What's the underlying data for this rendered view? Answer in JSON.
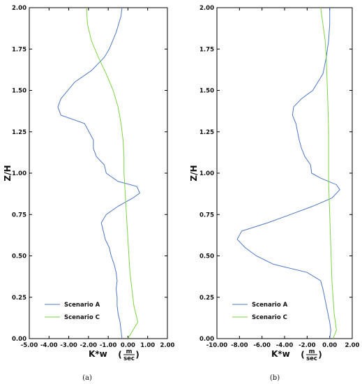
{
  "chart_data": [
    {
      "id": "a",
      "type": "line",
      "caption": "(a)",
      "xlabel": "K*w",
      "xunit_num": "m",
      "xunit_den": "sec",
      "ylabel": "Z/H",
      "xlim": [
        -5.0,
        2.0
      ],
      "ylim": [
        0.0,
        2.0
      ],
      "xticks": [
        -5.0,
        -4.0,
        -3.0,
        -2.0,
        -1.0,
        0.0,
        1.0,
        2.0
      ],
      "xtick_labels": [
        "-5.00",
        "-4.00",
        "-3.00",
        "-2.00",
        "-1.00",
        "0.00",
        "1.00",
        "2.00"
      ],
      "yticks": [
        0.0,
        0.25,
        0.5,
        0.75,
        1.0,
        1.25,
        1.5,
        1.75,
        2.0
      ],
      "ytick_labels": [
        "0.00",
        "0.25",
        "0.50",
        "0.75",
        "1.00",
        "1.25",
        "1.50",
        "1.75",
        "2.00"
      ],
      "legend_position": "bottom-left",
      "grid": false,
      "series": [
        {
          "name": "Scenario A",
          "color": "#4f78c4",
          "points": [
            [
              -0.3,
              0.0
            ],
            [
              -0.35,
              0.05
            ],
            [
              -0.4,
              0.1
            ],
            [
              -0.5,
              0.15
            ],
            [
              -0.55,
              0.2
            ],
            [
              -0.55,
              0.25
            ],
            [
              -0.6,
              0.3
            ],
            [
              -0.55,
              0.35
            ],
            [
              -0.6,
              0.4
            ],
            [
              -0.7,
              0.45
            ],
            [
              -0.85,
              0.5
            ],
            [
              -0.95,
              0.55
            ],
            [
              -1.15,
              0.6
            ],
            [
              -1.25,
              0.65
            ],
            [
              -1.35,
              0.7
            ],
            [
              -1.1,
              0.75
            ],
            [
              -0.5,
              0.8
            ],
            [
              0.25,
              0.85
            ],
            [
              0.6,
              0.88
            ],
            [
              0.45,
              0.92
            ],
            [
              -0.5,
              0.95
            ],
            [
              -1.1,
              1.0
            ],
            [
              -1.2,
              1.05
            ],
            [
              -1.6,
              1.1
            ],
            [
              -1.75,
              1.15
            ],
            [
              -1.75,
              1.2
            ],
            [
              -2.2,
              1.3
            ],
            [
              -3.4,
              1.35
            ],
            [
              -3.55,
              1.4
            ],
            [
              -3.4,
              1.45
            ],
            [
              -2.7,
              1.55
            ],
            [
              -1.85,
              1.62
            ],
            [
              -1.2,
              1.7
            ],
            [
              -0.95,
              1.75
            ],
            [
              -0.6,
              1.85
            ],
            [
              -0.35,
              1.95
            ],
            [
              -0.3,
              2.0
            ]
          ]
        },
        {
          "name": "Scenario C",
          "color": "#7ed346",
          "points": [
            [
              0.0,
              0.0
            ],
            [
              0.25,
              0.05
            ],
            [
              0.5,
              0.1
            ],
            [
              0.3,
              0.2
            ],
            [
              0.2,
              0.3
            ],
            [
              0.1,
              0.4
            ],
            [
              0.05,
              0.5
            ],
            [
              0.0,
              0.6
            ],
            [
              -0.05,
              0.7
            ],
            [
              -0.1,
              0.8
            ],
            [
              -0.15,
              0.9
            ],
            [
              -0.2,
              1.0
            ],
            [
              -0.2,
              1.1
            ],
            [
              -0.25,
              1.2
            ],
            [
              -0.35,
              1.3
            ],
            [
              -0.5,
              1.4
            ],
            [
              -0.75,
              1.5
            ],
            [
              -1.1,
              1.6
            ],
            [
              -1.5,
              1.7
            ],
            [
              -1.85,
              1.8
            ],
            [
              -2.05,
              1.9
            ],
            [
              -2.1,
              2.0
            ]
          ]
        }
      ]
    },
    {
      "id": "b",
      "type": "line",
      "caption": "(b)",
      "xlabel": "K*w",
      "xunit_num": "m",
      "xunit_den": "sec",
      "ylabel": "Z/H",
      "xlim": [
        -10.0,
        2.0
      ],
      "ylim": [
        0.0,
        2.0
      ],
      "xticks": [
        -10.0,
        -8.0,
        -6.0,
        -4.0,
        -2.0,
        0.0,
        2.0
      ],
      "xtick_labels": [
        "-10.00",
        "-8.00",
        "-6.00",
        "-4.00",
        "-2.00",
        "0.00",
        "2.00"
      ],
      "yticks": [
        0.0,
        0.25,
        0.5,
        0.75,
        1.0,
        1.25,
        1.5,
        1.75,
        2.0
      ],
      "ytick_labels": [
        "0.00",
        "0.25",
        "0.50",
        "0.75",
        "1.00",
        "1.25",
        "1.50",
        "1.75",
        "2.00"
      ],
      "legend_position": "bottom-left",
      "grid": false,
      "series": [
        {
          "name": "Scenario A",
          "color": "#4f78c4",
          "points": [
            [
              0.0,
              0.0
            ],
            [
              0.1,
              0.05
            ],
            [
              0.0,
              0.1
            ],
            [
              -0.3,
              0.2
            ],
            [
              -0.6,
              0.3
            ],
            [
              -0.8,
              0.35
            ],
            [
              -2.0,
              0.4
            ],
            [
              -5.0,
              0.45
            ],
            [
              -6.5,
              0.5
            ],
            [
              -7.5,
              0.55
            ],
            [
              -8.2,
              0.6
            ],
            [
              -7.8,
              0.65
            ],
            [
              -5.5,
              0.7
            ],
            [
              -3.5,
              0.75
            ],
            [
              -1.5,
              0.8
            ],
            [
              0.2,
              0.85
            ],
            [
              0.9,
              0.9
            ],
            [
              0.6,
              0.93
            ],
            [
              -0.8,
              0.97
            ],
            [
              -1.6,
              1.0
            ],
            [
              -1.7,
              1.05
            ],
            [
              -2.2,
              1.1
            ],
            [
              -2.5,
              1.15
            ],
            [
              -2.7,
              1.2
            ],
            [
              -3.0,
              1.3
            ],
            [
              -3.3,
              1.35
            ],
            [
              -3.2,
              1.4
            ],
            [
              -2.5,
              1.45
            ],
            [
              -1.5,
              1.5
            ],
            [
              -0.6,
              1.6
            ],
            [
              -0.3,
              1.7
            ],
            [
              -0.1,
              1.8
            ],
            [
              0.0,
              1.9
            ],
            [
              0.0,
              2.0
            ]
          ]
        },
        {
          "name": "Scenario C",
          "color": "#7ed346",
          "points": [
            [
              0.3,
              0.0
            ],
            [
              0.6,
              0.05
            ],
            [
              0.4,
              0.15
            ],
            [
              0.3,
              0.25
            ],
            [
              0.2,
              0.35
            ],
            [
              0.15,
              0.45
            ],
            [
              0.1,
              0.55
            ],
            [
              0.05,
              0.65
            ],
            [
              0.0,
              0.75
            ],
            [
              -0.05,
              0.85
            ],
            [
              -0.1,
              0.95
            ],
            [
              -0.1,
              1.05
            ],
            [
              -0.1,
              1.15
            ],
            [
              -0.1,
              1.25
            ],
            [
              -0.15,
              1.4
            ],
            [
              -0.2,
              1.5
            ],
            [
              -0.25,
              1.6
            ],
            [
              -0.3,
              1.7
            ],
            [
              -0.4,
              1.8
            ],
            [
              -0.6,
              1.9
            ],
            [
              -0.8,
              2.0
            ]
          ]
        }
      ]
    }
  ]
}
